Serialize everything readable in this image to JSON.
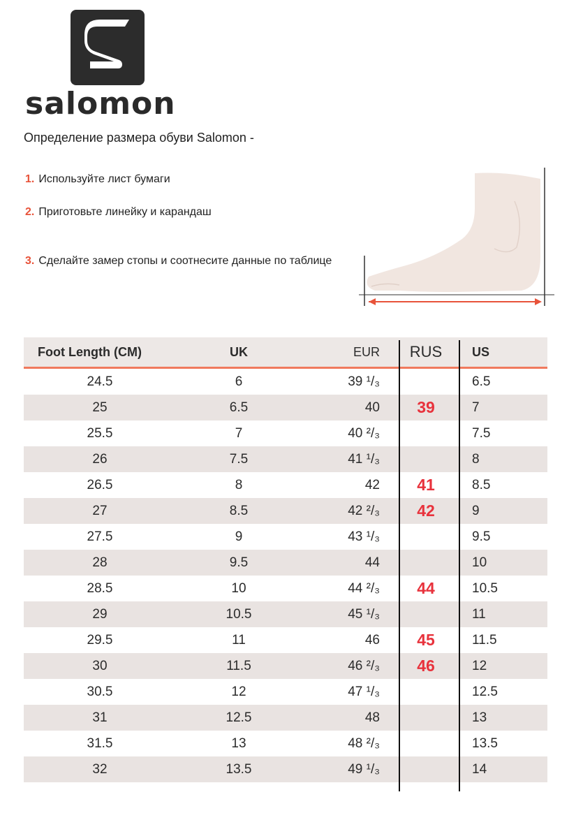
{
  "brand": {
    "name": "salomon"
  },
  "intro": "Определение размера обуви Salomon -",
  "steps": [
    {
      "num": "1.",
      "text": "Используйте лист бумаги"
    },
    {
      "num": "2.",
      "text": "Приготовьте линейку и карандаш"
    },
    {
      "num": "3.",
      "text": "Сделайте замер стопы и соотнесите данные по таблице"
    }
  ],
  "colors": {
    "accent": "#e8533a",
    "rus": "#e8323c",
    "stripe": "#e9e3e1"
  },
  "table": {
    "headers": [
      "Foot Length (CM)",
      "UK",
      "EUR",
      "RUS",
      "US"
    ],
    "rows": [
      [
        "24.5",
        "6",
        "39 ¹/₃",
        "",
        "6.5"
      ],
      [
        "25",
        "6.5",
        "40",
        "39",
        "7"
      ],
      [
        "25.5",
        "7",
        "40 ²/₃",
        "",
        "7.5"
      ],
      [
        "26",
        "7.5",
        "41 ¹/₃",
        "",
        "8"
      ],
      [
        "26.5",
        "8",
        "42",
        "41",
        "8.5"
      ],
      [
        "27",
        "8.5",
        "42 ²/₃",
        "42",
        "9"
      ],
      [
        "27.5",
        "9",
        "43 ¹/₃",
        "",
        "9.5"
      ],
      [
        "28",
        "9.5",
        "44",
        "",
        "10"
      ],
      [
        "28.5",
        "10",
        "44 ²/₃",
        "44",
        "10.5"
      ],
      [
        "29",
        "10.5",
        "45 ¹/₃",
        "",
        "11"
      ],
      [
        "29.5",
        "11",
        "46",
        "45",
        "11.5"
      ],
      [
        "30",
        "11.5",
        "46 ²/₃",
        "46",
        "12"
      ],
      [
        "30.5",
        "12",
        "47 ¹/₃",
        "",
        "12.5"
      ],
      [
        "31",
        "12.5",
        "48",
        "",
        "13"
      ],
      [
        "31.5",
        "13",
        "48 ²/₃",
        "",
        "13.5"
      ],
      [
        "32",
        "13.5",
        "49 ¹/₃",
        "",
        "14"
      ]
    ]
  }
}
